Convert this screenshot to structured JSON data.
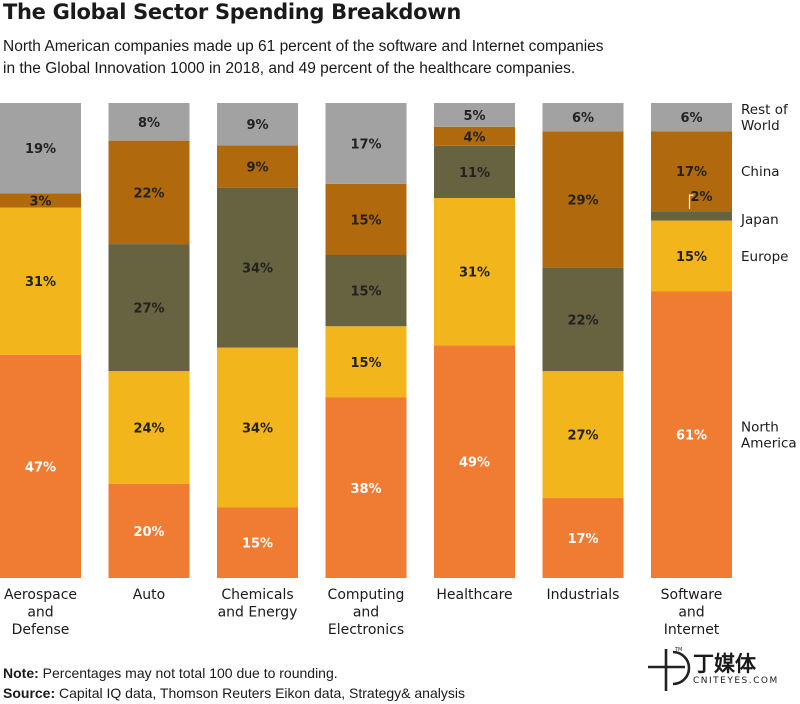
{
  "title": "The Global Sector Spending Breakdown",
  "subtitle_lines": [
    "North American companies made up 61 percent of the software and Internet companies",
    "in the Global Innovation 1000 in 2018, and 49 percent of the healthcare companies."
  ],
  "note_label": "Note:",
  "note_text": " Percentages may not total 100 due to rounding.",
  "source_label": "Source:",
  "source_text": " Capital IQ data, Thomson Reuters Eikon data, Strategy& analysis",
  "logo": {
    "cn": "丁媒体",
    "en": "CNITEYES.COM",
    "tm": "TM"
  },
  "colors": {
    "North America": "#f07b32",
    "Europe": "#f2b51b",
    "Japan": "#676340",
    "China": "#b1690d",
    "Rest of World": "#a2a2a2"
  },
  "chart_data": {
    "type": "bar",
    "stacked": true,
    "percent": true,
    "categories": [
      [
        "Aerospace",
        "and",
        "Defense"
      ],
      [
        "Auto"
      ],
      [
        "Chemicals",
        "and Energy"
      ],
      [
        "Computing",
        "and",
        "Electronics"
      ],
      [
        "Healthcare"
      ],
      [
        "Industrials"
      ],
      [
        "Software",
        "and",
        "Internet"
      ]
    ],
    "series": [
      {
        "name": "North America",
        "legend_lines": [
          "North",
          "America"
        ],
        "values": [
          47,
          20,
          15,
          38,
          49,
          17,
          61
        ]
      },
      {
        "name": "Europe",
        "legend_lines": [
          "Europe"
        ],
        "values": [
          31,
          24,
          34,
          15,
          31,
          27,
          15
        ]
      },
      {
        "name": "Japan",
        "legend_lines": [
          "Japan"
        ],
        "values": [
          0,
          27,
          34,
          15,
          11,
          22,
          2
        ]
      },
      {
        "name": "China",
        "legend_lines": [
          "China"
        ],
        "values": [
          3,
          22,
          9,
          15,
          4,
          29,
          17
        ]
      },
      {
        "name": "Rest of World",
        "legend_lines": [
          "Rest of",
          "World"
        ],
        "values": [
          19,
          8,
          9,
          17,
          5,
          6,
          6
        ]
      }
    ],
    "labels": [
      [
        "47%",
        "31%",
        null,
        "3%",
        "19%"
      ],
      [
        "20%",
        "24%",
        "27%",
        "22%",
        "8%"
      ],
      [
        "15%",
        "34%",
        "34%",
        "9%",
        "9%"
      ],
      [
        "38%",
        "15%",
        "15%",
        "15%",
        "17%"
      ],
      [
        "49%",
        "31%",
        "11%",
        "4%",
        "5%"
      ],
      [
        "17%",
        "27%",
        "22%",
        "29%",
        "6%"
      ],
      [
        "61%",
        "15%",
        "2%",
        "17%",
        "6%"
      ]
    ],
    "ylim": [
      0,
      100
    ],
    "legend_position": "right"
  }
}
